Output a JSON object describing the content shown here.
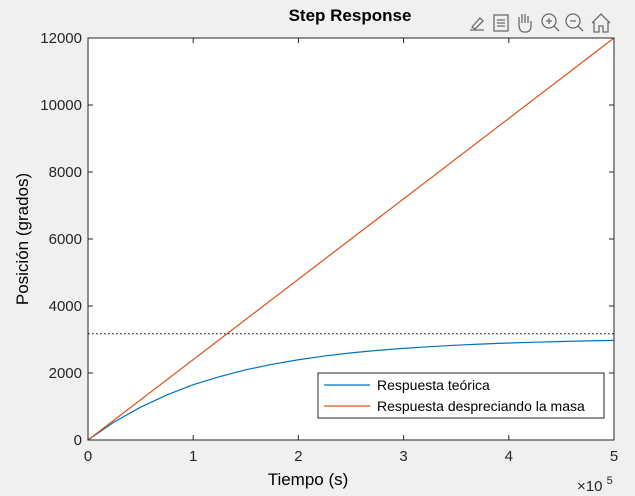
{
  "chart_data": {
    "type": "line",
    "title": "Step Response",
    "xlabel": "Tiempo (s)",
    "ylabel": "Posición (grados)",
    "xlim": [
      0,
      500000
    ],
    "ylim": [
      0,
      12000
    ],
    "x_exponent_label": "×10",
    "x_exponent_power": "5",
    "xticks": [
      {
        "value": 0,
        "label": "0"
      },
      {
        "value": 100000,
        "label": "1"
      },
      {
        "value": 200000,
        "label": "2"
      },
      {
        "value": 300000,
        "label": "3"
      },
      {
        "value": 400000,
        "label": "4"
      },
      {
        "value": 500000,
        "label": "5"
      }
    ],
    "yticks": [
      {
        "value": 0,
        "label": "0"
      },
      {
        "value": 2000,
        "label": "2000"
      },
      {
        "value": 4000,
        "label": "4000"
      },
      {
        "value": 6000,
        "label": "6000"
      },
      {
        "value": 8000,
        "label": "8000"
      },
      {
        "value": 10000,
        "label": "10000"
      },
      {
        "value": 12000,
        "label": "12000"
      }
    ],
    "grid": false,
    "legend_position": "bottom-right",
    "series": [
      {
        "name": "Respuesta teórica",
        "color": "#0072BD",
        "x": [
          0,
          25000,
          50000,
          75000,
          100000,
          125000,
          150000,
          175000,
          200000,
          225000,
          250000,
          275000,
          300000,
          325000,
          350000,
          375000,
          400000,
          425000,
          450000,
          475000,
          500000
        ],
        "y": [
          0,
          540,
          980,
          1345,
          1650,
          1890,
          2095,
          2260,
          2395,
          2510,
          2600,
          2675,
          2735,
          2785,
          2830,
          2865,
          2895,
          2920,
          2940,
          2960,
          2975
        ]
      },
      {
        "name": "Respuesta despreciando la masa",
        "color": "#D95319",
        "x": [
          0,
          500000
        ],
        "y": [
          0,
          12000
        ]
      }
    ],
    "reference_line": {
      "y": 3170,
      "style": "dotted",
      "color": "#000000"
    }
  },
  "toolbar": {
    "icons": [
      "brush-icon",
      "datatip-icon",
      "pan-hand-icon",
      "zoom-in-icon",
      "zoom-out-icon",
      "home-icon"
    ]
  }
}
